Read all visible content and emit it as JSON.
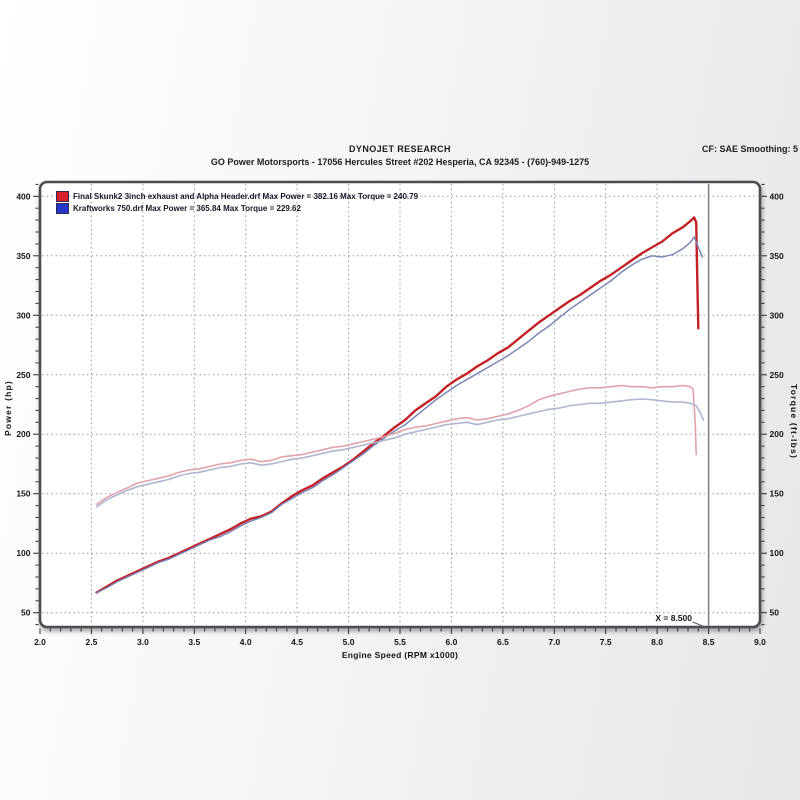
{
  "header": {
    "title": "DYNOJET RESEARCH",
    "subtitle": "GO Power Motorsports - 17056 Hercules Street #202 Hesperia, CA 92345 - (760)-949-1275",
    "correction_info": "CF: SAE  Smoothing: 5"
  },
  "legend": [
    {
      "label": "Final Skunk2 3inch exhaust and Alpha Header.drf Max Power = 382.16 Max Torque = 240.79",
      "swatch_color": "#d6202a"
    },
    {
      "label": "Kraftworks 750.drf Max Power = 365.84 Max Torque = 229.62",
      "swatch_color": "#2736c8"
    }
  ],
  "cursor": {
    "x": 8.5,
    "label": "X = 8.500"
  },
  "chart_data": {
    "type": "line",
    "title": "",
    "xlabel": "Engine Speed (RPM x1000)",
    "ylabel_left": "Power (hp)",
    "ylabel_right": "Torque (ft-lbs)",
    "x_range": [
      2.0,
      9.0
    ],
    "x_tick_step": 0.5,
    "x_minor_step": 0.1,
    "y_range": [
      38,
      412
    ],
    "y_ticks_start": 50,
    "y_ticks_end": 400,
    "y_tick_step": 50,
    "y_minor_step": 10,
    "grid": true,
    "legend_position": "top-left",
    "cursor_x": 8.5,
    "runs": [
      {
        "file": "Final Skunk2 3inch exhaust and Alpha Header.drf",
        "max_power": 382.16,
        "max_torque": 240.79
      },
      {
        "file": "Kraftworks 750.drf",
        "max_power": 365.84,
        "max_torque": 229.62
      }
    ],
    "series": [
      {
        "name": "Final Skunk2 3inch exhaust and Alpha Header.drf — Power (hp)",
        "axis": "power",
        "color": "#c42127",
        "width": 2.4,
        "points": [
          [
            2.55,
            67
          ],
          [
            2.65,
            72
          ],
          [
            2.75,
            77
          ],
          [
            2.85,
            81
          ],
          [
            2.95,
            85
          ],
          [
            3.05,
            89
          ],
          [
            3.15,
            93
          ],
          [
            3.25,
            96
          ],
          [
            3.35,
            100
          ],
          [
            3.45,
            104
          ],
          [
            3.55,
            108
          ],
          [
            3.65,
            112
          ],
          [
            3.75,
            116
          ],
          [
            3.85,
            120
          ],
          [
            3.95,
            125
          ],
          [
            4.05,
            129
          ],
          [
            4.15,
            131
          ],
          [
            4.25,
            135
          ],
          [
            4.35,
            142
          ],
          [
            4.45,
            148
          ],
          [
            4.55,
            153
          ],
          [
            4.65,
            157
          ],
          [
            4.75,
            163
          ],
          [
            4.85,
            168
          ],
          [
            4.95,
            173
          ],
          [
            5.05,
            179
          ],
          [
            5.15,
            186
          ],
          [
            5.25,
            193
          ],
          [
            5.35,
            199
          ],
          [
            5.45,
            206
          ],
          [
            5.55,
            212
          ],
          [
            5.65,
            220
          ],
          [
            5.75,
            226
          ],
          [
            5.85,
            232
          ],
          [
            5.95,
            240
          ],
          [
            6.05,
            246
          ],
          [
            6.15,
            251
          ],
          [
            6.25,
            257
          ],
          [
            6.35,
            262
          ],
          [
            6.45,
            268
          ],
          [
            6.55,
            273
          ],
          [
            6.65,
            280
          ],
          [
            6.75,
            287
          ],
          [
            6.85,
            294
          ],
          [
            6.95,
            300
          ],
          [
            7.05,
            306
          ],
          [
            7.15,
            312
          ],
          [
            7.25,
            317
          ],
          [
            7.35,
            323
          ],
          [
            7.45,
            329
          ],
          [
            7.55,
            334
          ],
          [
            7.65,
            340
          ],
          [
            7.75,
            346
          ],
          [
            7.85,
            352
          ],
          [
            7.95,
            357
          ],
          [
            8.05,
            362
          ],
          [
            8.15,
            369
          ],
          [
            8.25,
            374
          ],
          [
            8.32,
            379
          ],
          [
            8.36,
            382.2
          ],
          [
            8.38,
            378
          ],
          [
            8.39,
            330
          ],
          [
            8.4,
            289
          ]
        ]
      },
      {
        "name": "Kraftworks 750.drf — Power (hp)",
        "axis": "power",
        "color": "#7380b4",
        "width": 1.4,
        "points": [
          [
            2.55,
            67
          ],
          [
            2.65,
            71
          ],
          [
            2.75,
            76
          ],
          [
            2.85,
            80
          ],
          [
            2.95,
            84
          ],
          [
            3.05,
            88
          ],
          [
            3.15,
            92
          ],
          [
            3.25,
            95
          ],
          [
            3.35,
            99
          ],
          [
            3.45,
            103
          ],
          [
            3.55,
            107
          ],
          [
            3.65,
            111
          ],
          [
            3.75,
            114
          ],
          [
            3.85,
            118
          ],
          [
            3.95,
            123
          ],
          [
            4.05,
            127
          ],
          [
            4.15,
            130
          ],
          [
            4.25,
            134
          ],
          [
            4.35,
            141
          ],
          [
            4.45,
            146
          ],
          [
            4.55,
            151
          ],
          [
            4.65,
            155
          ],
          [
            4.75,
            161
          ],
          [
            4.85,
            166
          ],
          [
            4.95,
            172
          ],
          [
            5.05,
            178
          ],
          [
            5.15,
            184
          ],
          [
            5.25,
            191
          ],
          [
            5.35,
            197
          ],
          [
            5.45,
            203
          ],
          [
            5.55,
            208
          ],
          [
            5.65,
            215
          ],
          [
            5.75,
            222
          ],
          [
            5.85,
            229
          ],
          [
            5.95,
            235
          ],
          [
            6.05,
            241
          ],
          [
            6.15,
            246
          ],
          [
            6.25,
            251
          ],
          [
            6.35,
            256
          ],
          [
            6.45,
            261
          ],
          [
            6.55,
            266
          ],
          [
            6.65,
            272
          ],
          [
            6.75,
            278
          ],
          [
            6.85,
            285
          ],
          [
            6.95,
            291
          ],
          [
            7.05,
            298
          ],
          [
            7.15,
            305
          ],
          [
            7.25,
            311
          ],
          [
            7.35,
            317
          ],
          [
            7.45,
            323
          ],
          [
            7.55,
            329
          ],
          [
            7.65,
            336
          ],
          [
            7.75,
            342
          ],
          [
            7.85,
            347
          ],
          [
            7.95,
            350
          ],
          [
            8.05,
            349
          ],
          [
            8.15,
            351
          ],
          [
            8.25,
            356
          ],
          [
            8.32,
            361
          ],
          [
            8.36,
            365.8
          ],
          [
            8.4,
            357
          ],
          [
            8.44,
            349
          ]
        ]
      },
      {
        "name": "Final Skunk2 3inch exhaust and Alpha Header.drf — Torque (ft-lbs)",
        "axis": "torque",
        "color": "#e2a2aa",
        "width": 1.6,
        "points": [
          [
            2.55,
            141
          ],
          [
            2.65,
            147
          ],
          [
            2.75,
            151
          ],
          [
            2.85,
            155
          ],
          [
            2.95,
            159
          ],
          [
            3.05,
            161
          ],
          [
            3.15,
            163
          ],
          [
            3.25,
            165
          ],
          [
            3.35,
            168
          ],
          [
            3.45,
            170
          ],
          [
            3.55,
            171
          ],
          [
            3.65,
            173
          ],
          [
            3.75,
            175
          ],
          [
            3.85,
            176
          ],
          [
            3.95,
            178
          ],
          [
            4.05,
            179
          ],
          [
            4.15,
            177
          ],
          [
            4.25,
            178
          ],
          [
            4.35,
            181
          ],
          [
            4.45,
            182
          ],
          [
            4.55,
            183
          ],
          [
            4.65,
            185
          ],
          [
            4.75,
            187
          ],
          [
            4.85,
            189
          ],
          [
            4.95,
            190
          ],
          [
            5.05,
            192
          ],
          [
            5.15,
            194
          ],
          [
            5.25,
            196
          ],
          [
            5.35,
            198
          ],
          [
            5.45,
            201
          ],
          [
            5.55,
            204
          ],
          [
            5.65,
            206
          ],
          [
            5.75,
            207
          ],
          [
            5.85,
            209
          ],
          [
            5.95,
            211
          ],
          [
            6.05,
            213
          ],
          [
            6.15,
            214
          ],
          [
            6.25,
            212
          ],
          [
            6.35,
            213
          ],
          [
            6.45,
            215
          ],
          [
            6.55,
            217
          ],
          [
            6.65,
            220
          ],
          [
            6.75,
            224
          ],
          [
            6.85,
            229
          ],
          [
            6.95,
            232
          ],
          [
            7.05,
            234
          ],
          [
            7.15,
            236
          ],
          [
            7.25,
            238
          ],
          [
            7.35,
            239
          ],
          [
            7.45,
            239
          ],
          [
            7.55,
            240
          ],
          [
            7.65,
            241
          ],
          [
            7.75,
            240
          ],
          [
            7.85,
            240
          ],
          [
            7.95,
            239
          ],
          [
            8.05,
            240
          ],
          [
            8.15,
            240
          ],
          [
            8.25,
            241
          ],
          [
            8.32,
            240
          ],
          [
            8.35,
            238
          ],
          [
            8.37,
            210
          ],
          [
            8.38,
            183
          ]
        ]
      },
      {
        "name": "Kraftworks 750.drf — Torque (ft-lbs)",
        "axis": "torque",
        "color": "#aeb6d2",
        "width": 1.6,
        "points": [
          [
            2.55,
            139
          ],
          [
            2.65,
            145
          ],
          [
            2.75,
            149
          ],
          [
            2.85,
            153
          ],
          [
            2.95,
            156
          ],
          [
            3.05,
            158
          ],
          [
            3.15,
            160
          ],
          [
            3.25,
            162
          ],
          [
            3.35,
            165
          ],
          [
            3.45,
            167
          ],
          [
            3.55,
            168
          ],
          [
            3.65,
            170
          ],
          [
            3.75,
            172
          ],
          [
            3.85,
            173
          ],
          [
            3.95,
            175
          ],
          [
            4.05,
            176
          ],
          [
            4.15,
            174
          ],
          [
            4.25,
            175
          ],
          [
            4.35,
            177
          ],
          [
            4.45,
            179
          ],
          [
            4.55,
            180
          ],
          [
            4.65,
            182
          ],
          [
            4.75,
            184
          ],
          [
            4.85,
            186
          ],
          [
            4.95,
            187
          ],
          [
            5.05,
            189
          ],
          [
            5.15,
            191
          ],
          [
            5.25,
            193
          ],
          [
            5.35,
            195
          ],
          [
            5.45,
            197
          ],
          [
            5.55,
            200
          ],
          [
            5.65,
            202
          ],
          [
            5.75,
            204
          ],
          [
            5.85,
            206
          ],
          [
            5.95,
            208
          ],
          [
            6.05,
            209
          ],
          [
            6.15,
            210
          ],
          [
            6.25,
            208
          ],
          [
            6.35,
            210
          ],
          [
            6.45,
            212
          ],
          [
            6.55,
            213
          ],
          [
            6.65,
            215
          ],
          [
            6.75,
            217
          ],
          [
            6.85,
            219
          ],
          [
            6.95,
            221
          ],
          [
            7.05,
            222
          ],
          [
            7.15,
            224
          ],
          [
            7.25,
            225
          ],
          [
            7.35,
            226
          ],
          [
            7.45,
            226
          ],
          [
            7.55,
            227
          ],
          [
            7.65,
            228
          ],
          [
            7.75,
            229
          ],
          [
            7.85,
            229.6
          ],
          [
            7.95,
            229
          ],
          [
            8.05,
            228
          ],
          [
            8.15,
            227
          ],
          [
            8.25,
            227
          ],
          [
            8.32,
            226
          ],
          [
            8.38,
            224
          ],
          [
            8.42,
            218
          ],
          [
            8.45,
            212
          ]
        ]
      }
    ]
  }
}
